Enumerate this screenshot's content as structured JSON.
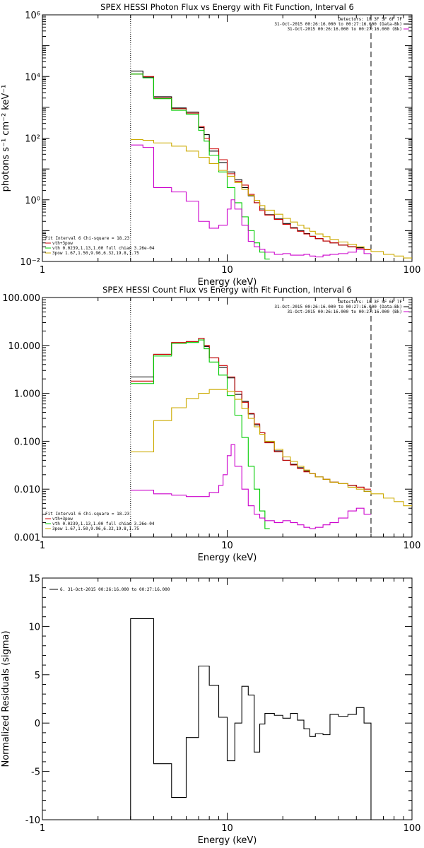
{
  "chart_data": [
    {
      "type": "line",
      "title": "SPEX HESSI Photon Flux vs Energy with Fit Function, Interval 6",
      "xlabel": "Energy (keV)",
      "ylabel": "photons s⁻¹ cm⁻² keV⁻¹",
      "xscale": "log",
      "yscale": "log",
      "xlim": [
        1,
        100
      ],
      "ylim": [
        0.01,
        1000000
      ],
      "x_tick_labels": [
        "1",
        "10",
        "100"
      ],
      "y_tick_values": [
        0.01,
        1,
        100,
        10000,
        1000000
      ],
      "y_tick_labels": [
        "10⁻²",
        "10⁰",
        "10²",
        "10⁴",
        "10⁶"
      ],
      "markers": {
        "dotted_x": 3,
        "dashed_x": 60
      },
      "legend_topright": [
        {
          "text": "Detectors: 1F 3F 5F 6F 7F",
          "color": "#000000"
        },
        {
          "text": "31-Oct-2015 00:26:16.000 to 00:27:16.000 (Data-Bk)",
          "color": "#000000"
        },
        {
          "text": "31-Oct-2015 00:26:16.000 to 00:27:16.000 (Bk)",
          "color": "#cc00cc"
        }
      ],
      "legend_bottomleft": [
        {
          "text": "Fit Interval 6   Chi-square = 18.23",
          "color": "#000000"
        },
        {
          "text": "vth+3pow",
          "color": "#cc0000"
        },
        {
          "text": "vth 0.0239,1.13,1.00  full chian 3.26e-04",
          "color": "#00cc00"
        },
        {
          "text": "3pow 1.67,1.50,9.96,6.32,19.8,1.75",
          "color": "#ccaa00"
        }
      ],
      "series": [
        {
          "color": "#000000",
          "edges": [
            3,
            3.5,
            4,
            5,
            6,
            7,
            7.5,
            8,
            9,
            10,
            11,
            12,
            13,
            14,
            15,
            16,
            18,
            20,
            22,
            24,
            26,
            28,
            30,
            33,
            36,
            40,
            45,
            50,
            55,
            60
          ],
          "values": [
            15000,
            9500,
            2200,
            950,
            700,
            220,
            130,
            38,
            16,
            8,
            4.5,
            2.5,
            1.35,
            0.8,
            0.5,
            0.33,
            0.24,
            0.17,
            0.125,
            0.1,
            0.08,
            0.066,
            0.055,
            0.046,
            0.04,
            0.034,
            0.03,
            0.028,
            0.024
          ]
        },
        {
          "color": "#cc0000",
          "edges": [
            3,
            3.5,
            4,
            5,
            6,
            7,
            7.5,
            8,
            9,
            10,
            11,
            12,
            13,
            14,
            15,
            16,
            18,
            20,
            22,
            24,
            26,
            28,
            30,
            33,
            36,
            40,
            45,
            50,
            55,
            60
          ],
          "values": [
            12000,
            10000,
            2000,
            900,
            650,
            240,
            100,
            45,
            20,
            7,
            4,
            3,
            1.5,
            0.8,
            0.45,
            0.32,
            0.23,
            0.16,
            0.12,
            0.095,
            0.078,
            0.065,
            0.055,
            0.046,
            0.04,
            0.034,
            0.03,
            0.026,
            0.024
          ]
        },
        {
          "color": "#00cc00",
          "edges": [
            3,
            3.5,
            4,
            5,
            6,
            7,
            7.5,
            8,
            9,
            10,
            11,
            12,
            13,
            14,
            15,
            16,
            17
          ],
          "values": [
            12000,
            9000,
            1900,
            800,
            600,
            180,
            80,
            28,
            8,
            2.5,
            0.8,
            0.28,
            0.1,
            0.04,
            0.02,
            0.012
          ]
        },
        {
          "color": "#ccaa00",
          "edges": [
            3,
            3.5,
            4,
            5,
            6,
            7,
            8,
            9,
            10,
            11,
            12,
            13,
            14,
            15,
            16,
            18,
            20,
            22,
            24,
            26,
            28,
            30,
            33,
            36,
            40,
            45,
            50,
            55,
            60,
            70,
            80,
            90,
            100
          ],
          "values": [
            90,
            85,
            70,
            55,
            38,
            24,
            15,
            9,
            5.8,
            3.6,
            2.2,
            1.4,
            0.95,
            0.65,
            0.46,
            0.34,
            0.25,
            0.19,
            0.15,
            0.12,
            0.095,
            0.078,
            0.064,
            0.052,
            0.043,
            0.036,
            0.03,
            0.025,
            0.021,
            0.017,
            0.015,
            0.013
          ]
        },
        {
          "color": "#cc00cc",
          "edges": [
            3,
            3.5,
            4,
            5,
            6,
            7,
            8,
            9,
            10,
            10.5,
            11,
            12,
            13,
            14,
            15,
            16,
            18,
            20,
            22,
            24,
            26,
            28,
            30,
            33,
            36,
            40,
            45,
            50,
            55,
            60
          ],
          "values": [
            60,
            50,
            2.5,
            1.8,
            0.9,
            0.2,
            0.12,
            0.15,
            0.5,
            1,
            0.5,
            0.15,
            0.045,
            0.03,
            0.025,
            0.02,
            0.017,
            0.018,
            0.016,
            0.016,
            0.017,
            0.015,
            0.014,
            0.016,
            0.017,
            0.018,
            0.02,
            0.025,
            0.018
          ]
        }
      ]
    },
    {
      "type": "line",
      "title": "SPEX HESSI Count Flux vs Energy with Fit Function, Interval 6",
      "xlabel": "Energy (keV)",
      "ylabel": "",
      "xscale": "log",
      "yscale": "log",
      "xlim": [
        1,
        100
      ],
      "ylim": [
        0.001,
        100
      ],
      "x_tick_labels": [
        "1",
        "10",
        "100"
      ],
      "y_tick_values": [
        0.001,
        0.01,
        0.1,
        1,
        10,
        100
      ],
      "y_tick_labels": [
        "0.001",
        "0.010",
        "0.100",
        "1.000",
        "10.000",
        "100.000"
      ],
      "markers": {
        "dotted_x": 3,
        "dashed_x": 60
      },
      "legend_topright": [
        {
          "text": "Detectors: 1F 3F 5F 6F 7F",
          "color": "#000000"
        },
        {
          "text": "31-Oct-2015 00:26:16.000 to 00:27:16.000 (Data-Bk)",
          "color": "#000000"
        },
        {
          "text": "31-Oct-2015 00:26:16.000 to 00:27:16.000 (Bk)",
          "color": "#cc00cc"
        }
      ],
      "legend_bottomleft": [
        {
          "text": "Fit Interval 6   Chi-square = 18.23",
          "color": "#000000"
        },
        {
          "text": "vth+3pow",
          "color": "#cc0000"
        },
        {
          "text": "vth 0.0239,1.13,1.00  full chian 3.26e-04",
          "color": "#00cc00"
        },
        {
          "text": "3pow 1.67,1.50,9.96,6.32,19.8,1.75",
          "color": "#ccaa00"
        }
      ],
      "series": [
        {
          "color": "#000000",
          "edges": [
            3,
            4,
            5,
            6,
            7,
            7.5,
            8,
            9,
            10,
            11,
            12,
            13,
            14,
            15,
            16,
            18,
            20,
            22,
            24,
            26,
            28,
            30,
            33,
            36,
            40,
            45,
            50,
            55,
            60
          ],
          "values": [
            2.2,
            6.5,
            11,
            12,
            14,
            9.5,
            5.5,
            3.5,
            2.1,
            0.95,
            0.68,
            0.37,
            0.22,
            0.15,
            0.095,
            0.063,
            0.04,
            0.033,
            0.028,
            0.024,
            0.021,
            0.018,
            0.016,
            0.014,
            0.013,
            0.012,
            0.011,
            0.009
          ]
        },
        {
          "color": "#cc0000",
          "edges": [
            3,
            4,
            5,
            6,
            7,
            7.5,
            8,
            9,
            10,
            11,
            12,
            13,
            14,
            15,
            16,
            18,
            20,
            22,
            24,
            26,
            28,
            30,
            33,
            36,
            40,
            45,
            50,
            55,
            60
          ],
          "values": [
            1.8,
            6.5,
            11.5,
            12,
            14,
            10,
            5.5,
            3.8,
            2.2,
            1.1,
            0.65,
            0.38,
            0.23,
            0.15,
            0.093,
            0.06,
            0.04,
            0.032,
            0.027,
            0.023,
            0.021,
            0.018,
            0.016,
            0.014,
            0.013,
            0.012,
            0.011,
            0.01
          ]
        },
        {
          "color": "#00cc00",
          "edges": [
            3,
            4,
            5,
            6,
            7,
            7.5,
            8,
            9,
            10,
            11,
            12,
            13,
            14,
            15,
            16,
            17
          ],
          "values": [
            1.6,
            6,
            11,
            11.5,
            13,
            8.5,
            4.5,
            2.4,
            0.9,
            0.35,
            0.12,
            0.03,
            0.01,
            0.0035,
            0.0015
          ]
        },
        {
          "color": "#ccaa00",
          "edges": [
            3,
            4,
            5,
            6,
            7,
            8,
            9,
            10,
            11,
            12,
            13,
            14,
            15,
            16,
            18,
            20,
            22,
            24,
            26,
            28,
            30,
            33,
            36,
            40,
            45,
            50,
            55,
            60,
            70,
            80,
            90,
            100
          ],
          "values": [
            0.06,
            0.27,
            0.5,
            0.78,
            1,
            1.2,
            1.2,
            1.1,
            0.75,
            0.48,
            0.3,
            0.2,
            0.14,
            0.1,
            0.068,
            0.047,
            0.038,
            0.03,
            0.025,
            0.021,
            0.018,
            0.016,
            0.014,
            0.013,
            0.011,
            0.01,
            0.009,
            0.008,
            0.0065,
            0.0055,
            0.0045
          ]
        },
        {
          "color": "#cc00cc",
          "edges": [
            3,
            4,
            5,
            6,
            7,
            8,
            9,
            9.5,
            10,
            10.5,
            11,
            12,
            13,
            14,
            15,
            16,
            18,
            20,
            22,
            24,
            26,
            28,
            30,
            33,
            36,
            40,
            45,
            50,
            55,
            60
          ],
          "values": [
            0.0095,
            0.008,
            0.0075,
            0.007,
            0.007,
            0.0085,
            0.012,
            0.02,
            0.05,
            0.085,
            0.03,
            0.01,
            0.0045,
            0.003,
            0.0025,
            0.0022,
            0.002,
            0.0022,
            0.002,
            0.0018,
            0.0016,
            0.0015,
            0.0016,
            0.0018,
            0.002,
            0.0025,
            0.0035,
            0.004,
            0.003
          ]
        }
      ]
    },
    {
      "type": "line",
      "title": "",
      "xlabel": "Energy (keV)",
      "ylabel": "Normalized Residuals (sigma)",
      "xscale": "log",
      "yscale": "linear",
      "xlim": [
        1,
        100
      ],
      "ylim": [
        -10,
        15
      ],
      "x_tick_labels": [
        "1",
        "10",
        "100"
      ],
      "y_tick_values": [
        -10,
        -5,
        0,
        5,
        10,
        15
      ],
      "y_tick_labels": [
        "-10",
        "-5",
        "0",
        "5",
        "10",
        "15"
      ],
      "legend": [
        {
          "text": "6. 31-Oct-2015 00:26:16.000 to 00:27:16.000",
          "color": "#000000"
        }
      ],
      "series": [
        {
          "color": "#000000",
          "edges": [
            3,
            4,
            5,
            6,
            7,
            8,
            9,
            10,
            11,
            12,
            13,
            14,
            15,
            16,
            18,
            20,
            22,
            24,
            26,
            28,
            30,
            33,
            36,
            40,
            45,
            50,
            55,
            60
          ],
          "values": [
            10.8,
            -4.2,
            -7.7,
            -1.5,
            5.9,
            3.9,
            0.6,
            -3.9,
            0.0,
            3.8,
            2.9,
            -3.0,
            -0.1,
            1.0,
            0.8,
            0.5,
            1.0,
            0.3,
            -0.6,
            -1.4,
            -1.1,
            -1.2,
            0.9,
            0.7,
            0.9,
            1.6,
            0.0
          ]
        }
      ]
    }
  ]
}
